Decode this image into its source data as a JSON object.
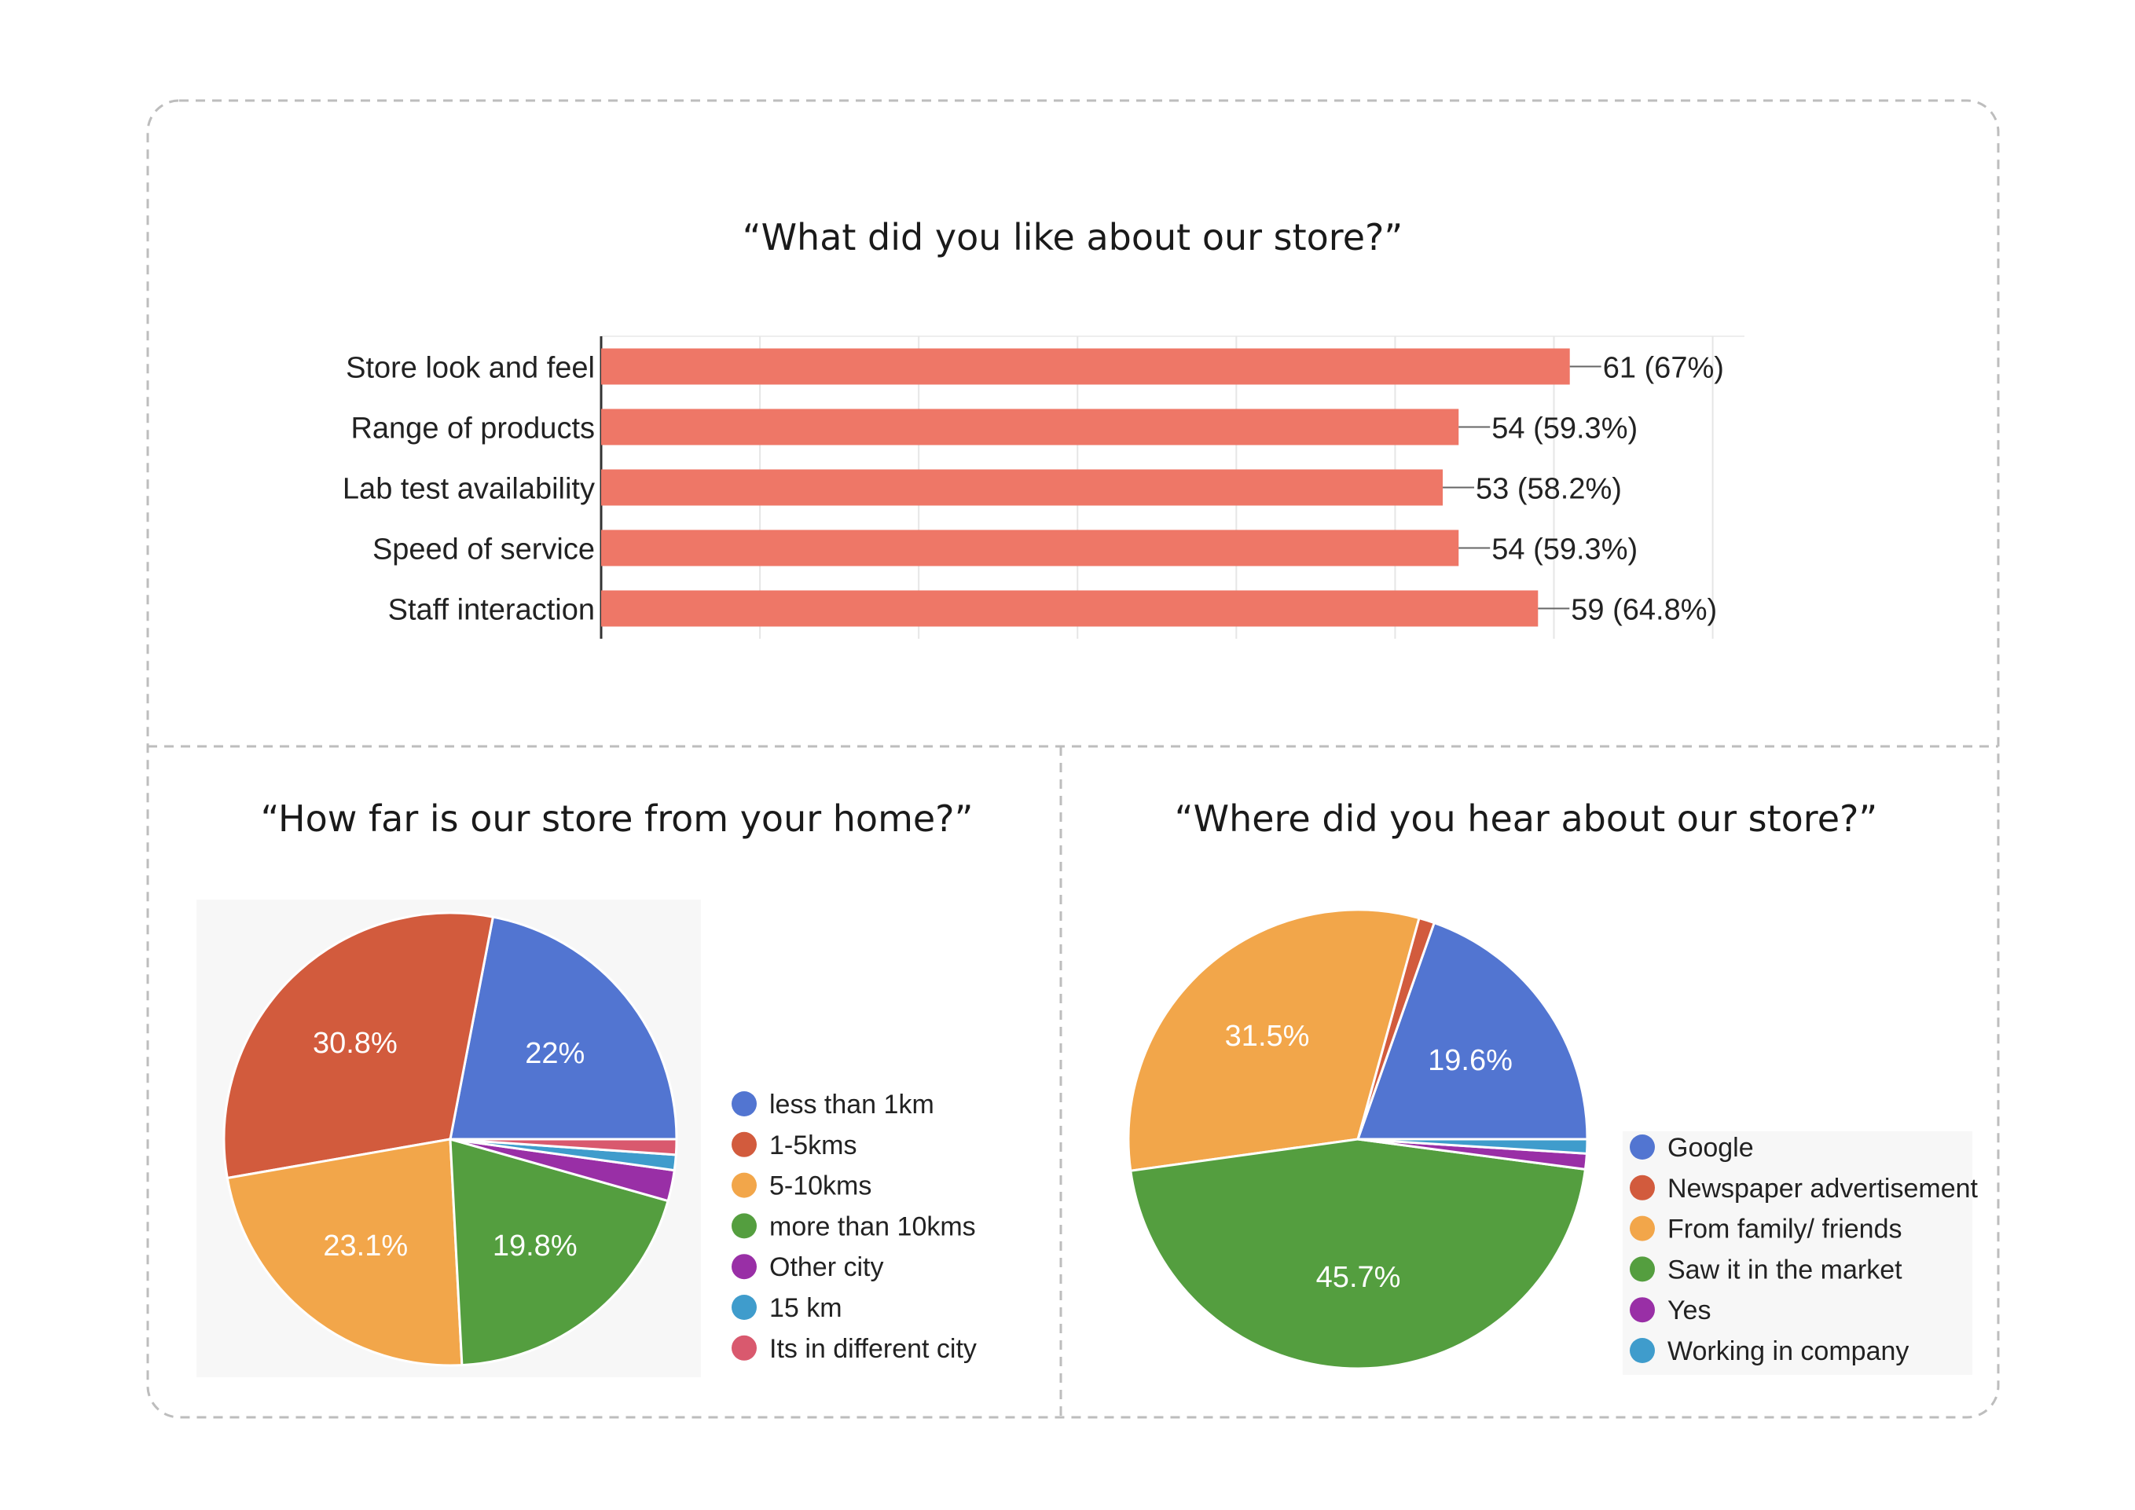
{
  "chart_data": [
    {
      "type": "bar",
      "orientation": "horizontal",
      "title": "“What did you like about our store?”",
      "categories": [
        "Store look and feel",
        "Range of products",
        "Lab test availability",
        "Speed of service",
        "Staff interaction"
      ],
      "values": [
        61,
        54,
        53,
        54,
        59
      ],
      "data_labels": [
        "61 (67%)",
        "54 (59.3%)",
        "53 (58.2%)",
        "54 (59.3%)",
        "59 (64.8%)"
      ],
      "xlim": [
        0,
        72
      ],
      "grid": true,
      "bar_color": "#ee7767"
    },
    {
      "type": "pie",
      "title": "“How far is our store from your home?”",
      "labels": [
        "less than 1km",
        "1-5kms",
        "5-10kms",
        "more than 10kms",
        "Other city",
        "15 km",
        "Its in different city"
      ],
      "values": [
        22,
        30.8,
        23.1,
        19.8,
        2.2,
        1.1,
        1.1
      ],
      "value_labels": [
        "22%",
        "30.8%",
        "23.1%",
        "19.8%",
        "",
        "",
        ""
      ],
      "colors": [
        "#5275d1",
        "#d25b3d",
        "#f2a64a",
        "#549e3f",
        "#992fa6",
        "#3f9ccc",
        "#d9596e"
      ],
      "legend": "right"
    },
    {
      "type": "pie",
      "title": "“Where did you hear about our store?”",
      "labels": [
        "Google",
        "Newspaper advertisement",
        "From family/ friends",
        "Saw it in the market",
        "Yes",
        "Working in company"
      ],
      "values": [
        19.6,
        1.1,
        31.5,
        45.7,
        1.1,
        1.0
      ],
      "value_labels": [
        "19.6%",
        "",
        "31.5%",
        "45.7%",
        "",
        ""
      ],
      "colors": [
        "#5275d1",
        "#d25b3d",
        "#f2a64a",
        "#549e3f",
        "#992fa6",
        "#3f9ccc"
      ],
      "legend": "right"
    }
  ]
}
